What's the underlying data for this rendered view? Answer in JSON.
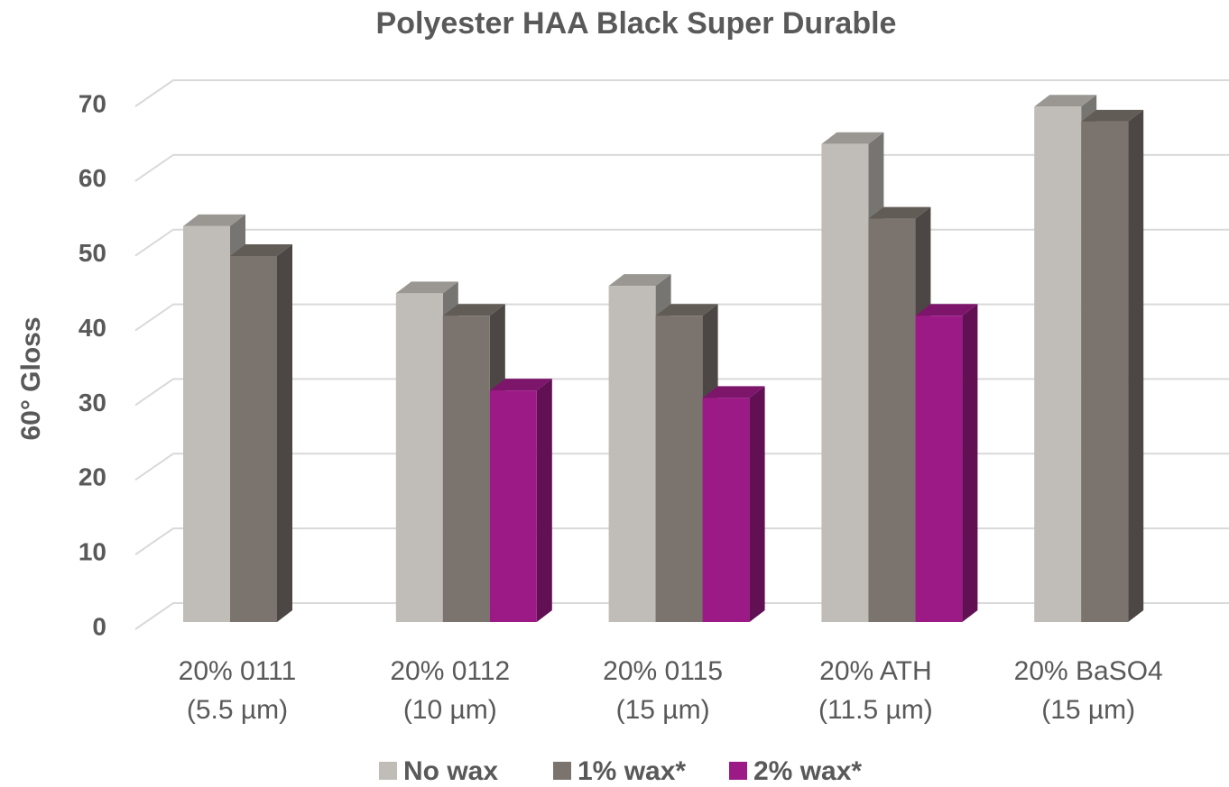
{
  "chart_data": {
    "type": "bar3d",
    "title": "Polyester HAA Black Super Durable",
    "y_label": "60° Gloss",
    "categories": [
      [
        "20% 0111",
        "(5.5 µm)"
      ],
      [
        "20% 0112",
        "(10 µm)"
      ],
      [
        "20% 0115",
        "(15 µm)"
      ],
      [
        "20% ATH",
        "(11.5 µm)"
      ],
      [
        "20% BaSO4",
        "(15 µm)"
      ]
    ],
    "series": [
      {
        "name": "No wax",
        "color": "#c0bdb8",
        "values": [
          53,
          44,
          45,
          64,
          69
        ]
      },
      {
        "name": "1% wax*",
        "color": "#7b736d",
        "values": [
          49,
          41,
          41,
          54,
          67
        ]
      },
      {
        "name": "2% wax*",
        "color": "#9c1a86",
        "values": [
          null,
          31,
          30,
          41,
          null
        ]
      }
    ],
    "ylim": [
      0,
      70
    ],
    "yticks": [
      0,
      10,
      20,
      30,
      40,
      50,
      60,
      70
    ],
    "grid": true,
    "legend": "bottom"
  }
}
